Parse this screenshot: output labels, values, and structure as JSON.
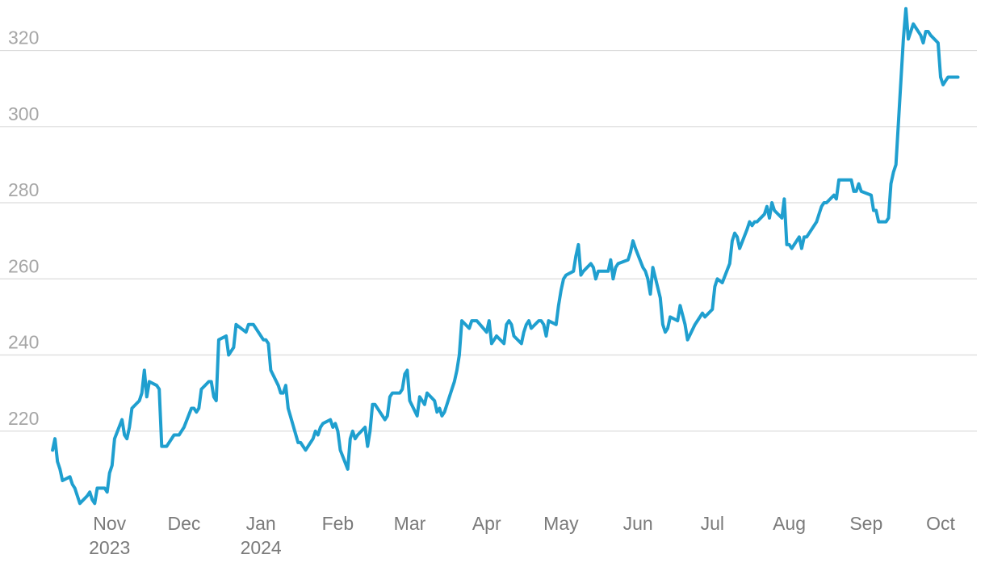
{
  "chart_data": {
    "type": "line",
    "title": "",
    "xlabel": "",
    "ylabel": "",
    "ylim": [
      200,
      332
    ],
    "xlim": [
      "2023-10-08",
      "2024-10-15"
    ],
    "grid": true,
    "legend": "none",
    "colors": {
      "line": "#1f9fcf",
      "grid": "#dcdcdc",
      "ytick": "#a6a6a6",
      "xtick": "#7a7a7a"
    },
    "y_ticks": [
      "220",
      "240",
      "260",
      "280",
      "300",
      "320"
    ],
    "x_ticks": [
      {
        "date": "2023-11-01",
        "label": "Nov",
        "sub": "2023"
      },
      {
        "date": "2023-12-01",
        "label": "Dec",
        "sub": ""
      },
      {
        "date": "2024-01-01",
        "label": "Jan",
        "sub": "2024"
      },
      {
        "date": "2024-02-01",
        "label": "Feb",
        "sub": ""
      },
      {
        "date": "2024-03-01",
        "label": "Mar",
        "sub": ""
      },
      {
        "date": "2024-04-01",
        "label": "Apr",
        "sub": ""
      },
      {
        "date": "2024-05-01",
        "label": "May",
        "sub": ""
      },
      {
        "date": "2024-06-01",
        "label": "Jun",
        "sub": ""
      },
      {
        "date": "2024-07-01",
        "label": "Jul",
        "sub": ""
      },
      {
        "date": "2024-08-01",
        "label": "Aug",
        "sub": ""
      },
      {
        "date": "2024-09-01",
        "label": "Sep",
        "sub": ""
      },
      {
        "date": "2024-10-01",
        "label": "Oct",
        "sub": ""
      }
    ],
    "series": [
      {
        "x": [
          "2023-10-09",
          "2023-10-10",
          "2023-10-11",
          "2023-10-12",
          "2023-10-13",
          "2023-10-16",
          "2023-10-17",
          "2023-10-18",
          "2023-10-19",
          "2023-10-20",
          "2023-10-23",
          "2023-10-24",
          "2023-10-25",
          "2023-10-26",
          "2023-10-27",
          "2023-10-30",
          "2023-10-31",
          "2023-11-01",
          "2023-11-02",
          "2023-11-03",
          "2023-11-06",
          "2023-11-07",
          "2023-11-08",
          "2023-11-09",
          "2023-11-10",
          "2023-11-13",
          "2023-11-14",
          "2023-11-15",
          "2023-11-16",
          "2023-11-17",
          "2023-11-20",
          "2023-11-21",
          "2023-11-22",
          "2023-11-24",
          "2023-11-27",
          "2023-11-28",
          "2023-11-29",
          "2023-11-30",
          "2023-12-01",
          "2023-12-04",
          "2023-12-05",
          "2023-12-06",
          "2023-12-07",
          "2023-12-08",
          "2023-12-11",
          "2023-12-12",
          "2023-12-13",
          "2023-12-14",
          "2023-12-15",
          "2023-12-18",
          "2023-12-19",
          "2023-12-20",
          "2023-12-21",
          "2023-12-22",
          "2023-12-26",
          "2023-12-27",
          "2023-12-28",
          "2023-12-29",
          "2024-01-02",
          "2024-01-03",
          "2024-01-04",
          "2024-01-05",
          "2024-01-08",
          "2024-01-09",
          "2024-01-10",
          "2024-01-11",
          "2024-01-12",
          "2024-01-16",
          "2024-01-17",
          "2024-01-18",
          "2024-01-19",
          "2024-01-22",
          "2024-01-23",
          "2024-01-24",
          "2024-01-25",
          "2024-01-26",
          "2024-01-29",
          "2024-01-30",
          "2024-01-31",
          "2024-02-01",
          "2024-02-02",
          "2024-02-05",
          "2024-02-06",
          "2024-02-07",
          "2024-02-08",
          "2024-02-09",
          "2024-02-12",
          "2024-02-13",
          "2024-02-14",
          "2024-02-15",
          "2024-02-16",
          "2024-02-20",
          "2024-02-21",
          "2024-02-22",
          "2024-02-23",
          "2024-02-26",
          "2024-02-27",
          "2024-02-28",
          "2024-02-29",
          "2024-03-01",
          "2024-03-04",
          "2024-03-05",
          "2024-03-06",
          "2024-03-07",
          "2024-03-08",
          "2024-03-11",
          "2024-03-12",
          "2024-03-13",
          "2024-03-14",
          "2024-03-15",
          "2024-03-18",
          "2024-03-19",
          "2024-03-20",
          "2024-03-21",
          "2024-03-22",
          "2024-03-25",
          "2024-03-26",
          "2024-03-27",
          "2024-03-28",
          "2024-04-01",
          "2024-04-02",
          "2024-04-03",
          "2024-04-04",
          "2024-04-05",
          "2024-04-08",
          "2024-04-09",
          "2024-04-10",
          "2024-04-11",
          "2024-04-12",
          "2024-04-15",
          "2024-04-16",
          "2024-04-17",
          "2024-04-18",
          "2024-04-19",
          "2024-04-22",
          "2024-04-23",
          "2024-04-24",
          "2024-04-25",
          "2024-04-26",
          "2024-04-29",
          "2024-04-30",
          "2024-05-01",
          "2024-05-02",
          "2024-05-03",
          "2024-05-06",
          "2024-05-07",
          "2024-05-08",
          "2024-05-09",
          "2024-05-10",
          "2024-05-13",
          "2024-05-14",
          "2024-05-15",
          "2024-05-16",
          "2024-05-17",
          "2024-05-20",
          "2024-05-21",
          "2024-05-22",
          "2024-05-23",
          "2024-05-24",
          "2024-05-28",
          "2024-05-29",
          "2024-05-30",
          "2024-05-31",
          "2024-06-03",
          "2024-06-04",
          "2024-06-05",
          "2024-06-06",
          "2024-06-07",
          "2024-06-10",
          "2024-06-11",
          "2024-06-12",
          "2024-06-13",
          "2024-06-14",
          "2024-06-17",
          "2024-06-18",
          "2024-06-20",
          "2024-06-21",
          "2024-06-24",
          "2024-06-25",
          "2024-06-26",
          "2024-06-27",
          "2024-06-28",
          "2024-07-01",
          "2024-07-02",
          "2024-07-03",
          "2024-07-05",
          "2024-07-08",
          "2024-07-09",
          "2024-07-10",
          "2024-07-11",
          "2024-07-12",
          "2024-07-15",
          "2024-07-16",
          "2024-07-17",
          "2024-07-18",
          "2024-07-19",
          "2024-07-22",
          "2024-07-23",
          "2024-07-24",
          "2024-07-25",
          "2024-07-26",
          "2024-07-29",
          "2024-07-30",
          "2024-07-31",
          "2024-08-01",
          "2024-08-02",
          "2024-08-05",
          "2024-08-06",
          "2024-08-07",
          "2024-08-08",
          "2024-08-09",
          "2024-08-12",
          "2024-08-13",
          "2024-08-14",
          "2024-08-15",
          "2024-08-16",
          "2024-08-19",
          "2024-08-20",
          "2024-08-21",
          "2024-08-22",
          "2024-08-23",
          "2024-08-26",
          "2024-08-27",
          "2024-08-28",
          "2024-08-29",
          "2024-08-30",
          "2024-09-03",
          "2024-09-04",
          "2024-09-05",
          "2024-09-06",
          "2024-09-09",
          "2024-09-10",
          "2024-09-11",
          "2024-09-12",
          "2024-09-13",
          "2024-09-16",
          "2024-09-17",
          "2024-09-18",
          "2024-09-19",
          "2024-09-20",
          "2024-09-23",
          "2024-09-24",
          "2024-09-25",
          "2024-09-26",
          "2024-09-27",
          "2024-09-30",
          "2024-10-01",
          "2024-10-02",
          "2024-10-03",
          "2024-10-04",
          "2024-10-07",
          "2024-10-08"
        ],
        "y": [
          215,
          218,
          212,
          210,
          207,
          208,
          206,
          205,
          203,
          201,
          203,
          204,
          202,
          201,
          205,
          205,
          204,
          209,
          211,
          218,
          223,
          219,
          218,
          221,
          226,
          228,
          230,
          236,
          229,
          233,
          232,
          231,
          216,
          216,
          219,
          219,
          219,
          220,
          221,
          226,
          226,
          225,
          226,
          231,
          233,
          233,
          229,
          228,
          244,
          245,
          240,
          241,
          242,
          248,
          246,
          248,
          248,
          248,
          244,
          244,
          243,
          236,
          232,
          230,
          230,
          232,
          226,
          217,
          217,
          216,
          215,
          218,
          220,
          219,
          221,
          222,
          223,
          221,
          222,
          220,
          215,
          210,
          218,
          220,
          218,
          219,
          221,
          216,
          220,
          227,
          227,
          223,
          224,
          229,
          230,
          230,
          231,
          235,
          236,
          228,
          224,
          229,
          228,
          227,
          230,
          228,
          225,
          226,
          224,
          225,
          231,
          233,
          236,
          240,
          249,
          247,
          249,
          249,
          249,
          246,
          249,
          243,
          244,
          245,
          243,
          248,
          249,
          248,
          245,
          243,
          246,
          248,
          249,
          247,
          249,
          249,
          248,
          245,
          249,
          248,
          253,
          257,
          260,
          261,
          262,
          266,
          269,
          261,
          262,
          264,
          263,
          260,
          262,
          262,
          262,
          265,
          260,
          263,
          264,
          265,
          267,
          270,
          268,
          263,
          262,
          260,
          256,
          263,
          255,
          248,
          246,
          247,
          250,
          249,
          253,
          248,
          244,
          248,
          249,
          250,
          251,
          250,
          252,
          258,
          260,
          259,
          264,
          270,
          272,
          271,
          268,
          273,
          275,
          274,
          275,
          275,
          277,
          279,
          276,
          280,
          278,
          276,
          281,
          269,
          269,
          268,
          271,
          268,
          271,
          271,
          272,
          275,
          277,
          279,
          280,
          280,
          282,
          281,
          286,
          286,
          286,
          286,
          283,
          283,
          285,
          283,
          282,
          278,
          278,
          275,
          275,
          276,
          285,
          288,
          290,
          323,
          331,
          323,
          325,
          327,
          324,
          322,
          325,
          325,
          324,
          322,
          313,
          311,
          312,
          313,
          313,
          313
        ]
      }
    ]
  }
}
